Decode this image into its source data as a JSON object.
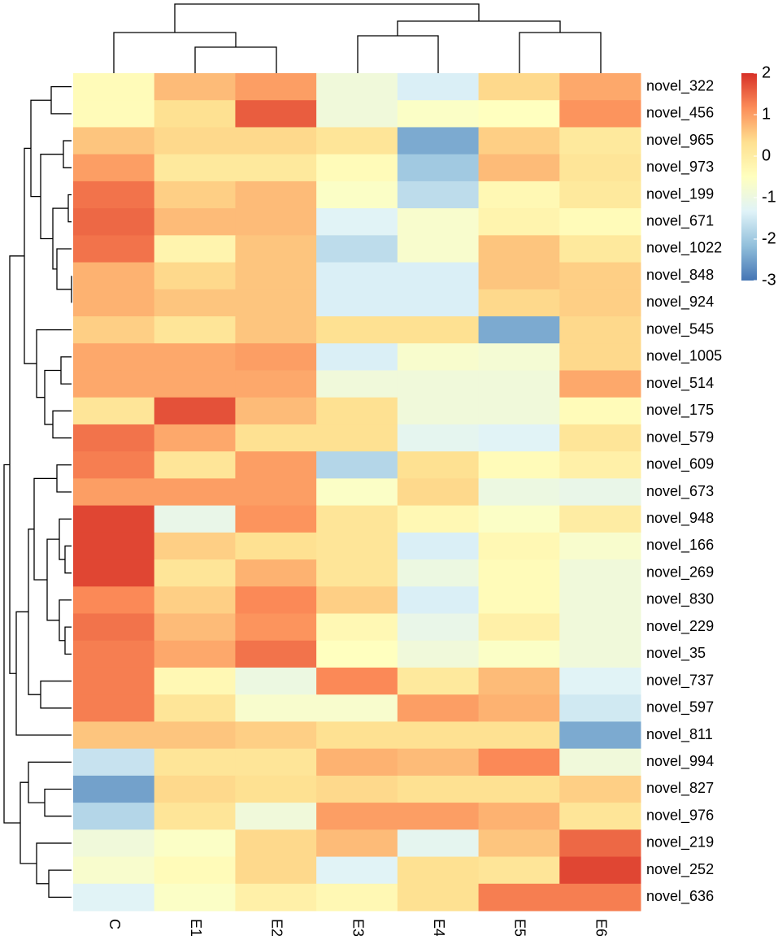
{
  "chart_data": {
    "type": "heatmap",
    "columns": [
      "C",
      "E1",
      "E2",
      "E3",
      "E4",
      "E5",
      "E6"
    ],
    "rows": [
      "novel_322",
      "novel_456",
      "novel_965",
      "novel_973",
      "novel_199",
      "novel_671",
      "novel_1022",
      "novel_848",
      "novel_924",
      "novel_545",
      "novel_1005",
      "novel_514",
      "novel_175",
      "novel_579",
      "novel_609",
      "novel_673",
      "novel_948",
      "novel_166",
      "novel_269",
      "novel_830",
      "novel_229",
      "novel_35",
      "novel_737",
      "novel_597",
      "novel_811",
      "novel_994",
      "novel_827",
      "novel_976",
      "novel_219",
      "novel_252",
      "novel_636"
    ],
    "values": [
      [
        -0.4,
        0.7,
        1.0,
        -0.9,
        -1.4,
        0.4,
        0.9
      ],
      [
        -0.4,
        0.3,
        1.6,
        -0.9,
        -0.6,
        -0.5,
        1.1
      ],
      [
        0.6,
        0.4,
        0.4,
        0.2,
        -2.4,
        0.5,
        0.1
      ],
      [
        1.0,
        0.1,
        0.1,
        -0.4,
        -2.0,
        0.7,
        0.2
      ],
      [
        1.4,
        0.5,
        0.7,
        -0.6,
        -1.7,
        -0.3,
        0.1
      ],
      [
        1.5,
        0.7,
        0.7,
        -1.3,
        -0.7,
        -0.2,
        -0.4
      ],
      [
        1.4,
        -0.2,
        0.6,
        -1.7,
        -0.7,
        0.6,
        0.1
      ],
      [
        0.8,
        0.4,
        0.6,
        -1.4,
        -1.4,
        0.6,
        0.5
      ],
      [
        0.8,
        0.6,
        0.6,
        -1.4,
        -1.4,
        0.4,
        0.5
      ],
      [
        0.5,
        0.2,
        0.6,
        0.3,
        0.3,
        -2.4,
        0.4
      ],
      [
        0.9,
        0.9,
        1.0,
        -1.4,
        -0.7,
        -0.8,
        0.4
      ],
      [
        0.9,
        0.9,
        0.9,
        -0.9,
        -0.9,
        -0.9,
        0.9
      ],
      [
        0.2,
        1.7,
        0.7,
        0.3,
        -0.9,
        -0.9,
        -0.4
      ],
      [
        1.4,
        0.9,
        0.3,
        0.3,
        -1.2,
        -1.3,
        0.2
      ],
      [
        1.3,
        0.2,
        1.0,
        -1.8,
        0.3,
        -0.4,
        -0.1
      ],
      [
        1.0,
        1.0,
        1.0,
        -0.6,
        0.4,
        -1.0,
        -1.1
      ],
      [
        1.8,
        -1.1,
        1.1,
        0.2,
        -0.3,
        -0.6,
        0.0
      ],
      [
        1.8,
        0.5,
        0.3,
        0.2,
        -1.4,
        -0.3,
        -0.7
      ],
      [
        1.8,
        0.2,
        0.8,
        0.2,
        -1.0,
        -0.4,
        -0.9
      ],
      [
        1.2,
        0.5,
        1.2,
        0.5,
        -1.4,
        -0.4,
        -0.9
      ],
      [
        1.4,
        0.7,
        1.1,
        -0.3,
        -1.1,
        -0.1,
        -0.9
      ],
      [
        1.3,
        0.9,
        1.4,
        -0.5,
        -0.9,
        -0.6,
        -0.9
      ],
      [
        1.3,
        -0.3,
        -1.0,
        1.2,
        0.1,
        0.7,
        -1.3
      ],
      [
        1.3,
        0.2,
        -0.7,
        -0.7,
        1.0,
        0.8,
        -1.5
      ],
      [
        0.6,
        0.6,
        0.5,
        0.3,
        0.3,
        0.3,
        -2.4
      ],
      [
        -1.6,
        0.2,
        0.2,
        0.8,
        0.7,
        1.2,
        -0.9
      ],
      [
        -2.5,
        0.4,
        0.3,
        0.4,
        0.3,
        0.3,
        0.5
      ],
      [
        -1.8,
        0.2,
        -0.9,
        1.0,
        1.0,
        0.8,
        0.2
      ],
      [
        -0.9,
        -0.6,
        0.4,
        0.7,
        -1.2,
        0.6,
        1.5
      ],
      [
        -0.7,
        -0.4,
        0.4,
        -1.3,
        0.3,
        0.2,
        1.8
      ],
      [
        -1.3,
        -0.6,
        -0.1,
        -0.3,
        0.3,
        1.3,
        1.3
      ]
    ],
    "zlim": [
      -3,
      2
    ],
    "zticks": [
      2,
      1,
      0,
      -1,
      -2,
      -3
    ],
    "colors": [
      "#4575b4",
      "#91bfdb",
      "#e0f3f8",
      "#ffffbf",
      "#fee090",
      "#fc8d59",
      "#d73027"
    ]
  }
}
